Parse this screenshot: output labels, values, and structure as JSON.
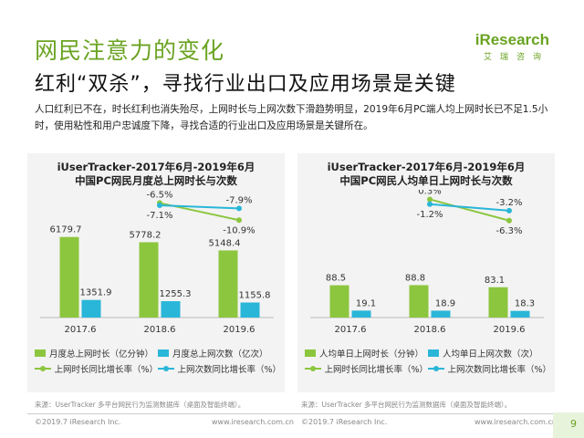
{
  "header": {
    "title": "网民注意力的变化",
    "subtitle": "红利“双杀”，寻找行业出口及应用场景是关键",
    "logo_brand": "iResearch",
    "logo_cn": "艾瑞咨询"
  },
  "description": "人口红利已不在，时长红利也消失殆尽，上网时长与上网次数下滑趋势明显，2019年6月PC端人均上网时长已不足1.5小时，使用粘性和用户忠诚度下降，寻找合适的行业出口及应用场景是关键所在。",
  "colors": {
    "green": "#8cc63f",
    "blue": "#29b6d8",
    "title_green": "#6aa321",
    "panel_bg": "#f3f3f3"
  },
  "chart_data": [
    {
      "type": "bar",
      "title": "iUserTracker-2017年6月-2019年6月",
      "subtitle": "中国PC网民月度总上网时长与次数",
      "categories": [
        "2017.6",
        "2018.6",
        "2019.6"
      ],
      "series": [
        {
          "name": "月度总上网时长（亿分钟）",
          "kind": "bar",
          "color": "#8cc63f",
          "values": [
            6179.7,
            5778.2,
            5148.4
          ],
          "labels": [
            "6179.7",
            "5778.2",
            "5148.4"
          ]
        },
        {
          "name": "月度总上网次数（亿次）",
          "kind": "bar",
          "color": "#29b6d8",
          "values": [
            1351.9,
            1255.3,
            1155.8
          ],
          "labels": [
            "1351.9",
            "1255.3",
            "1155.8"
          ]
        },
        {
          "name": "上网时长同比增长率（%）",
          "kind": "line",
          "color": "#8cc63f",
          "values": [
            null,
            -6.5,
            -10.9
          ],
          "labels": [
            null,
            "-6.5%",
            "-10.9%"
          ]
        },
        {
          "name": "上网次数同比增长率（%）",
          "kind": "line",
          "color": "#29b6d8",
          "values": [
            null,
            -7.1,
            -7.9
          ],
          "labels": [
            null,
            "-7.1%",
            "-7.9%"
          ]
        }
      ],
      "bar_max": 7000,
      "line_range": [
        -12,
        -5
      ]
    },
    {
      "type": "bar",
      "title": "iUserTracker-2017年6月-2019年6月",
      "subtitle": "中国PC网民人均单日上网时长与次数",
      "categories": [
        "2017.6",
        "2018.6",
        "2019.6"
      ],
      "series": [
        {
          "name": "人均单日上网时长（分钟）",
          "kind": "bar",
          "color": "#8cc63f",
          "values": [
            88.5,
            88.8,
            83.1
          ],
          "labels": [
            "88.5",
            "88.8",
            "83.1"
          ]
        },
        {
          "name": "人均单日上网次数（次）",
          "kind": "bar",
          "color": "#29b6d8",
          "values": [
            19.1,
            18.9,
            18.3
          ],
          "labels": [
            "19.1",
            "18.9",
            "18.3"
          ]
        },
        {
          "name": "上网时长同比增长率（%）",
          "kind": "line",
          "color": "#8cc63f",
          "values": [
            null,
            0.3,
            -6.3
          ],
          "labels": [
            null,
            "0.3%",
            "-6.3%"
          ]
        },
        {
          "name": "上网次数同比增长率（%）",
          "kind": "line",
          "color": "#29b6d8",
          "values": [
            null,
            -1.2,
            -3.2
          ],
          "labels": [
            null,
            "-1.2%",
            "-3.2%"
          ]
        }
      ],
      "bar_max": 250,
      "line_range": [
        -7.5,
        1
      ]
    }
  ],
  "sources": [
    "来源：UserTracker 多平台网民行为监测数据库（桌面及智能终端）。",
    "来源：UserTracker 多平台网民行为监测数据库（桌面及智能终端）。"
  ],
  "footer": {
    "copyright_left": "©2019.7 iResearch Inc.",
    "url_left": "www.iresearch.com.cn",
    "copyright_right": "©2019.7 iResearch Inc.",
    "url_right": "www.iresearch.com.cn",
    "page": "9"
  }
}
